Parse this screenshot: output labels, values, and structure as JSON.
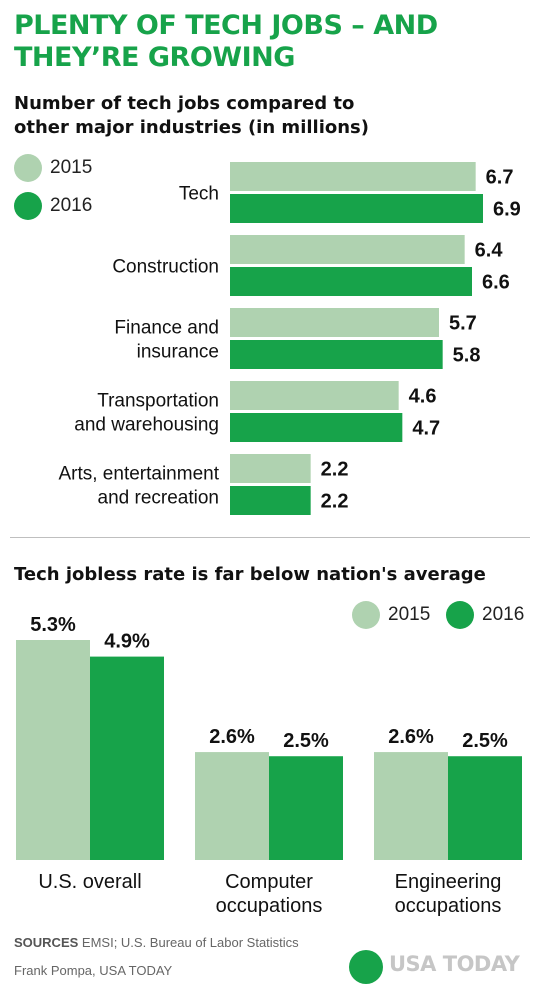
{
  "headline": [
    "PLENTY OF TECH JOBS – AND",
    "THEY’RE GROWING"
  ],
  "colors": {
    "y2015": "#afd2b0",
    "y2016": "#17a34a",
    "accent": "#17a34a"
  },
  "chart_data": [
    {
      "type": "bar",
      "orientation": "horizontal",
      "title": [
        "Number of tech jobs compared to",
        "other major industries (in millions)"
      ],
      "categories": [
        [
          "Tech"
        ],
        [
          "Construction"
        ],
        [
          "Finance and",
          "insurance"
        ],
        [
          "Transportation",
          "and warehousing"
        ],
        [
          "Arts, entertainment",
          "and recreation"
        ]
      ],
      "series": [
        {
          "name": "2015",
          "values": [
            6.7,
            6.4,
            5.7,
            4.6,
            2.2
          ],
          "labels": [
            "6.7",
            "6.4",
            "5.7",
            "4.6",
            "2.2"
          ]
        },
        {
          "name": "2016",
          "values": [
            6.9,
            6.6,
            5.8,
            4.7,
            2.2
          ],
          "labels": [
            "6.9",
            "6.6",
            "5.8",
            "4.7",
            "2.2"
          ]
        }
      ],
      "xlim": [
        0,
        6.9
      ],
      "grid": false,
      "legend": "top-left"
    },
    {
      "type": "bar",
      "orientation": "vertical",
      "title": "Tech jobless rate is far below nation's average",
      "categories": [
        [
          "U.S. overall"
        ],
        [
          "Computer",
          "occupations"
        ],
        [
          "Engineering",
          "occupations"
        ]
      ],
      "series": [
        {
          "name": "2015",
          "values": [
            5.3,
            2.6,
            2.6
          ],
          "labels": [
            "5.3%",
            "2.6%",
            "2.6%"
          ]
        },
        {
          "name": "2016",
          "values": [
            4.9,
            2.5,
            2.5
          ],
          "labels": [
            "4.9%",
            "2.5%",
            "2.5%"
          ]
        }
      ],
      "ylim": [
        0,
        5.3
      ],
      "grid": false,
      "legend": "top-right"
    }
  ],
  "footer": {
    "sources_label": "SOURCES",
    "sources_text": " EMSI; U.S. Bureau of Labor Statistics",
    "credit": "Frank Pompa, USA TODAY",
    "logo_text": "USA TODAY"
  }
}
